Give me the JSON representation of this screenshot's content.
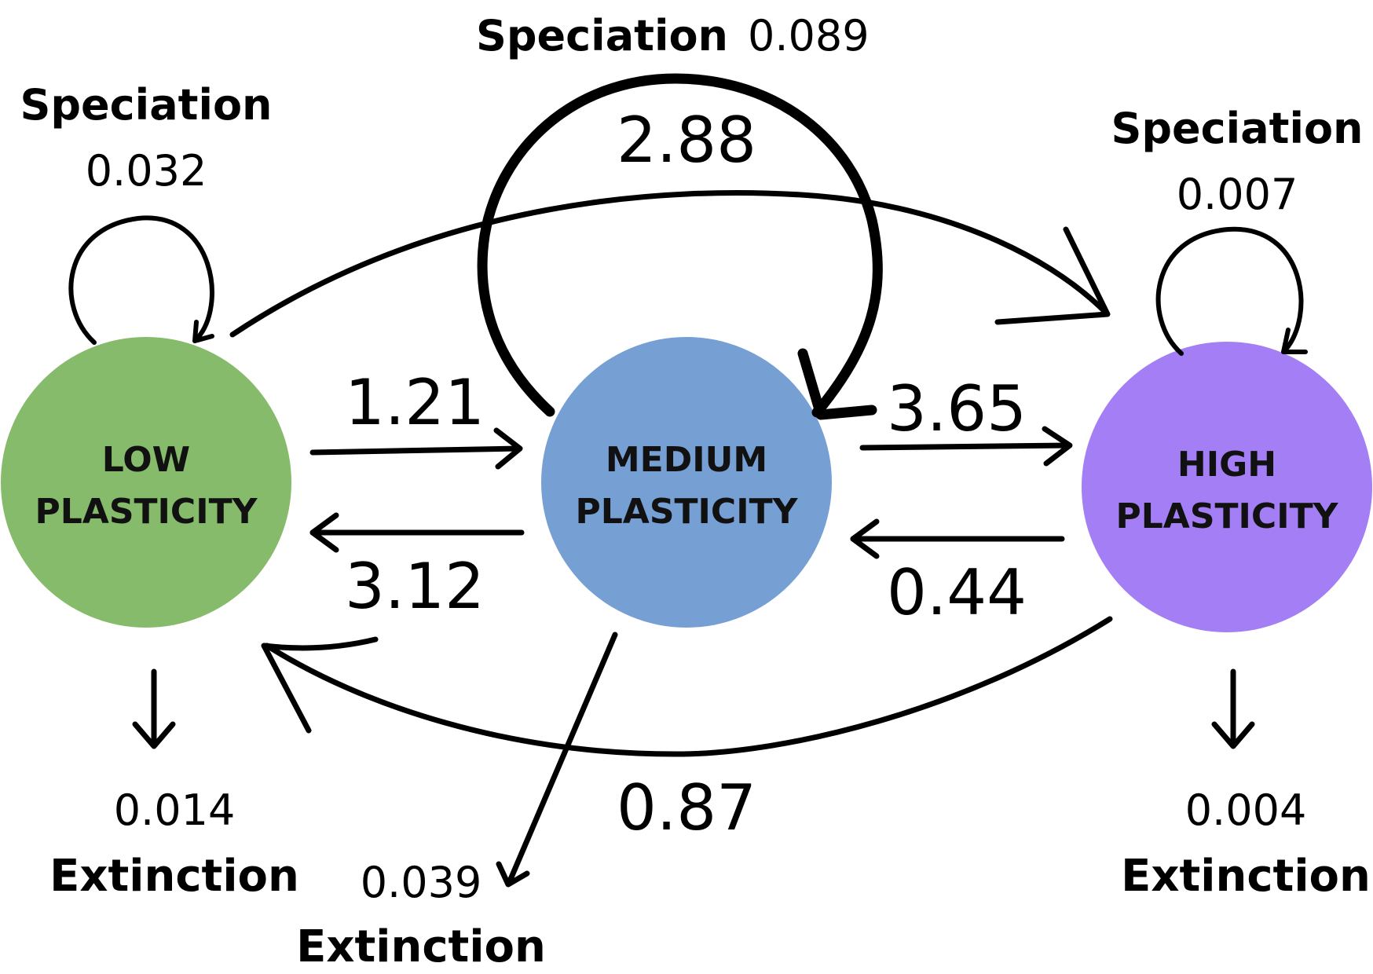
{
  "colors": {
    "low": "#86bb6b",
    "medium": "#769fd4",
    "high": "#a47ef4",
    "ink": "#000000"
  },
  "nodes": {
    "low": {
      "line1": "LOW",
      "line2": "PLASTICITY"
    },
    "medium": {
      "line1": "MEDIUM",
      "line2": "PLASTICITY"
    },
    "high": {
      "line1": "HIGH",
      "line2": "PLASTICITY"
    }
  },
  "speciation": {
    "label": "Speciation",
    "low": "0.032",
    "medium": "0.089",
    "high": "0.007"
  },
  "extinction": {
    "label": "Extinction",
    "low": "0.014",
    "medium": "0.039",
    "high": "0.004"
  },
  "transitions": {
    "low_to_medium": "1.21",
    "medium_to_low": "3.12",
    "medium_to_high": "3.65",
    "high_to_medium": "0.44",
    "high_to_low": "0.87",
    "low_to_high": "2.88"
  }
}
